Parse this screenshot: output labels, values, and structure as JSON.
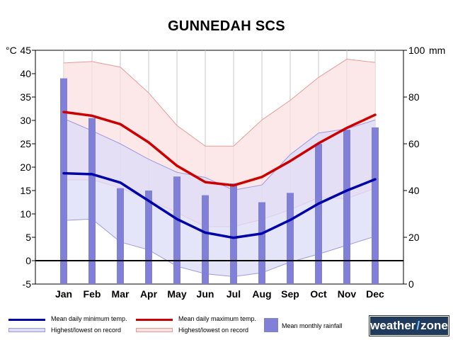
{
  "title": "GUNNEDAH SCS",
  "colors": {
    "max_line": "#cc0000",
    "min_line": "#0000aa",
    "max_band_fill": "#fbe0e0",
    "max_band_edge": "#e89a9a",
    "min_band_fill": "#dcdcf8",
    "min_band_edge": "#9a9ae0",
    "rain_bar": "#8080d8",
    "zero_line": "#000000",
    "logo_bg": "#1f3a5a"
  },
  "legend": {
    "min_temp": "Mean daily minimum temp.",
    "max_temp": "Mean daily maximum temp.",
    "min_range": "Highest/lowest on record",
    "max_range": "Highest/lowest on record",
    "rainfall": "Mean monthly rainfall"
  },
  "logo": {
    "text_left": "weather",
    "text_right": "zone"
  },
  "chart_data": {
    "type": "bar+line+area",
    "categories": [
      "Jan",
      "Feb",
      "Mar",
      "Apr",
      "May",
      "Jun",
      "Jul",
      "Aug",
      "Sep",
      "Oct",
      "Nov",
      "Dec"
    ],
    "temp_axis": {
      "label": "°C",
      "ylim": [
        -5,
        45
      ],
      "ticks": [
        "-5",
        "0",
        "5",
        "10",
        "15",
        "20",
        "25",
        "30",
        "35",
        "40",
        "45"
      ]
    },
    "rain_axis": {
      "label": "mm",
      "ylim": [
        0,
        100
      ],
      "ticks": [
        "0",
        "20",
        "40",
        "60",
        "80",
        "100"
      ]
    },
    "series": [
      {
        "name": "Mean daily maximum temp.",
        "kind": "line",
        "values": [
          31.8,
          31.0,
          29.2,
          25.3,
          20.3,
          16.8,
          16.1,
          17.9,
          21.3,
          25.1,
          28.4,
          31.2
        ]
      },
      {
        "name": "Mean daily minimum temp.",
        "kind": "line",
        "values": [
          18.7,
          18.5,
          16.7,
          12.8,
          8.9,
          6.0,
          4.9,
          5.8,
          8.7,
          12.2,
          15.0,
          17.4
        ]
      },
      {
        "name": "Highest/lowest on record (max)",
        "kind": "band",
        "upper": [
          42.3,
          42.6,
          41.4,
          35.9,
          28.9,
          24.5,
          24.5,
          30.1,
          34.3,
          39.2,
          43.1,
          42.4
        ],
        "lower": [
          17.3,
          17.3,
          15.6,
          13.0,
          10.3,
          7.3,
          7.3,
          8.8,
          10.9,
          13.5,
          13.3,
          15.5
        ]
      },
      {
        "name": "Highest/lowest on record (min)",
        "kind": "band",
        "upper": [
          30.4,
          27.8,
          25.0,
          21.7,
          18.9,
          17.8,
          15.1,
          16.2,
          22.7,
          27.3,
          28.2,
          30.1
        ],
        "lower": [
          8.6,
          8.9,
          4.0,
          2.3,
          -1.2,
          -2.8,
          -3.4,
          -2.6,
          -0.3,
          1.4,
          3.3,
          5.2
        ]
      },
      {
        "name": "Mean monthly rainfall",
        "kind": "bar",
        "axis": "rain",
        "values": [
          88,
          71,
          41,
          40,
          46,
          38,
          43,
          35,
          39,
          60,
          66,
          67
        ]
      }
    ],
    "grid": "vertical",
    "legend_position": "bottom"
  }
}
